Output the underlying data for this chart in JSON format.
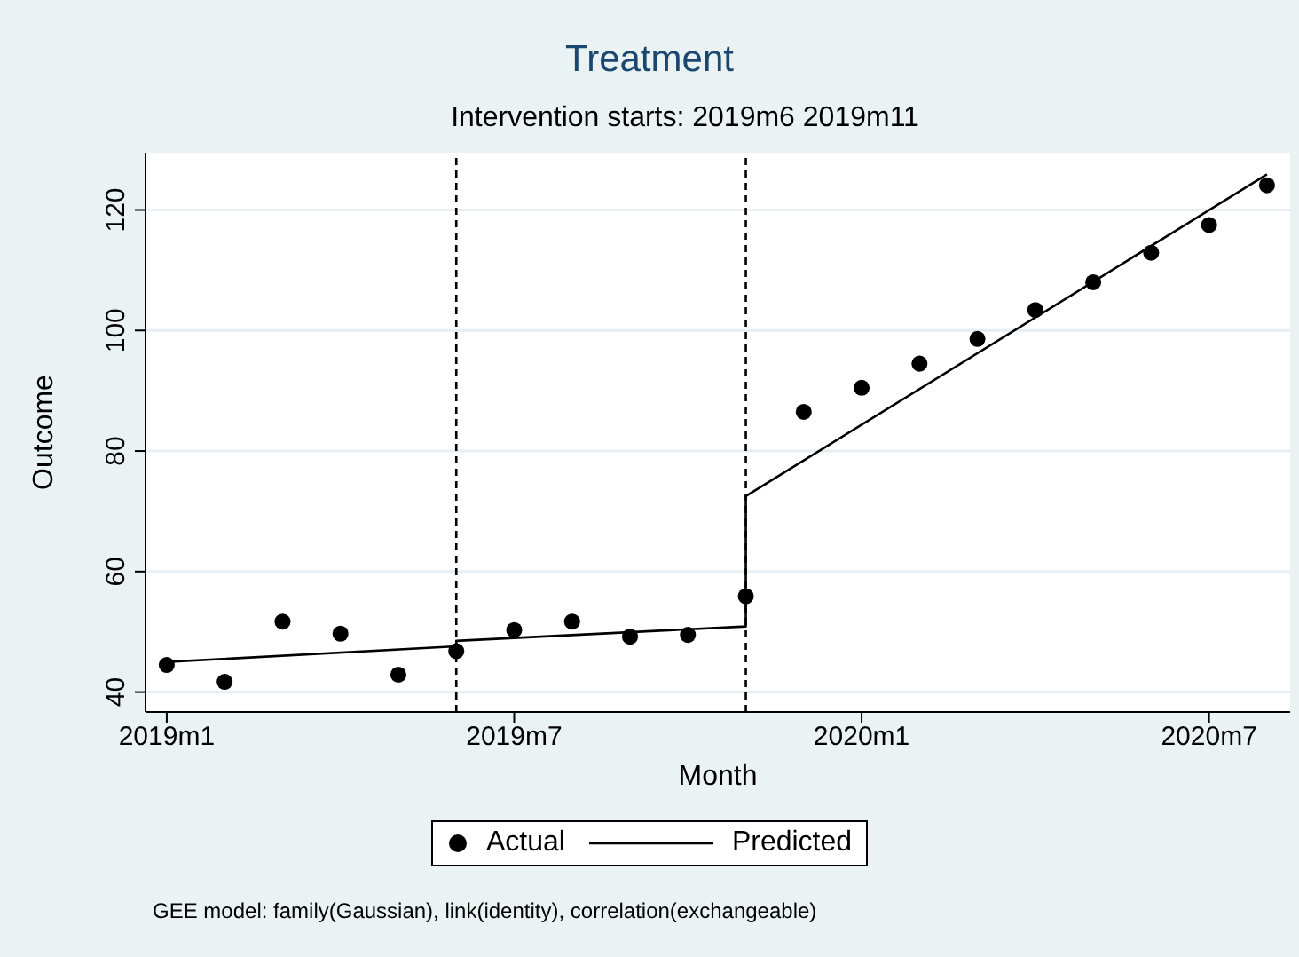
{
  "chart_data": {
    "type": "scatter",
    "title": "Treatment",
    "subtitle": "Intervention starts: 2019m6 2019m11",
    "xlabel": "Month",
    "ylabel": "Outcome",
    "x": [
      "2019-01",
      "2019-02",
      "2019-03",
      "2019-04",
      "2019-05",
      "2019-06",
      "2019-07",
      "2019-08",
      "2019-09",
      "2019-10",
      "2019-11",
      "2019-12",
      "2020-01",
      "2020-02",
      "2020-03",
      "2020-04",
      "2020-05",
      "2020-06",
      "2020-07",
      "2020-08"
    ],
    "series": [
      {
        "name": "Actual",
        "color": "#000000",
        "marker": "circle",
        "values": [
          44.5,
          41.7,
          51.7,
          49.7,
          42.9,
          46.8,
          50.3,
          51.7,
          49.2,
          49.5,
          55.9,
          86.5,
          90.5,
          94.5,
          98.6,
          103.4,
          108.0,
          112.9,
          117.5,
          124.1
        ]
      },
      {
        "name": "Predicted",
        "type": "line",
        "color": "#000000",
        "marker": "none",
        "line_style": "solid",
        "x": [
          "2019-01",
          "2019-06",
          "2019-06",
          "2019-11",
          "2019-11",
          "2020-08"
        ],
        "values": [
          45.0,
          47.6,
          48.5,
          50.9,
          72.5,
          125.9
        ]
      }
    ],
    "xlim": [
      "2018-12-20",
      "2020-08-13"
    ],
    "xticks": [
      {
        "value": "2019-01",
        "label": "2019m1"
      },
      {
        "value": "2019-07",
        "label": "2019m7"
      },
      {
        "value": "2020-01",
        "label": "2020m1"
      },
      {
        "value": "2020-07",
        "label": "2020m7"
      }
    ],
    "ylim": [
      36.7,
      129.5
    ],
    "yticks": [
      40,
      60,
      80,
      100,
      120
    ],
    "ref_lines": [
      {
        "axis": "x",
        "value": "2019-06",
        "label": null,
        "color": "#000000",
        "line_style": "dashed"
      },
      {
        "axis": "x",
        "value": "2019-11",
        "label": null,
        "color": "#000000",
        "line_style": "dashed"
      }
    ],
    "grid": "y",
    "legend": "bottom",
    "annotations": [
      "GEE model: family(Gaussian), link(identity), correlation(exchangeable)"
    ]
  }
}
